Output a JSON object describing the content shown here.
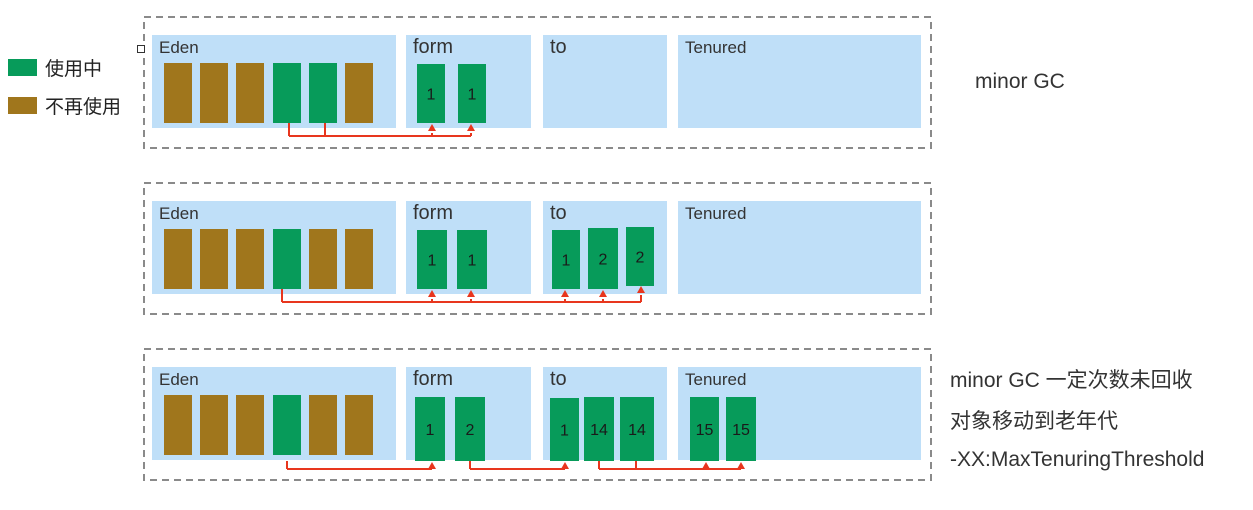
{
  "colors": {
    "in_use": "#079B5A",
    "unused": "#A0761C",
    "region": "#BFDFF8",
    "arrow": "#E8361E",
    "frame": "#8a8a8a"
  },
  "legend": [
    {
      "label": "使用中",
      "color": "#079B5A"
    },
    {
      "label": "不再使用",
      "color": "#A0761C"
    }
  ],
  "notes": {
    "row1": "minor GC",
    "row3_line1": "minor GC 一定次数未回收",
    "row3_line2": "对象移动到老年代",
    "row3_line3": "-XX:MaxTenuringThreshold"
  },
  "rows": [
    {
      "regions": {
        "eden": {
          "label": "Eden",
          "blocks": [
            "unused",
            "unused",
            "unused",
            "in_use",
            "in_use",
            "unused"
          ]
        },
        "form": {
          "label": "form",
          "blocks": [
            "1",
            "1"
          ]
        },
        "to": {
          "label": "to",
          "blocks": []
        },
        "tenured": {
          "label": "Tenured",
          "blocks": []
        }
      }
    },
    {
      "regions": {
        "eden": {
          "label": "Eden",
          "blocks": [
            "unused",
            "unused",
            "unused",
            "in_use",
            "unused",
            "unused"
          ]
        },
        "form": {
          "label": "form",
          "blocks": [
            "1",
            "1"
          ]
        },
        "to": {
          "label": "to",
          "blocks": [
            "1",
            "2",
            "2"
          ]
        },
        "tenured": {
          "label": "Tenured",
          "blocks": []
        }
      }
    },
    {
      "regions": {
        "eden": {
          "label": "Eden",
          "blocks": [
            "unused",
            "unused",
            "unused",
            "in_use",
            "unused",
            "unused"
          ]
        },
        "form": {
          "label": "form",
          "blocks": [
            "1",
            "2"
          ]
        },
        "to": {
          "label": "to",
          "blocks": [
            "1",
            "14",
            "14"
          ]
        },
        "tenured": {
          "label": "Tenured",
          "blocks": [
            "15",
            "15"
          ]
        }
      }
    }
  ]
}
